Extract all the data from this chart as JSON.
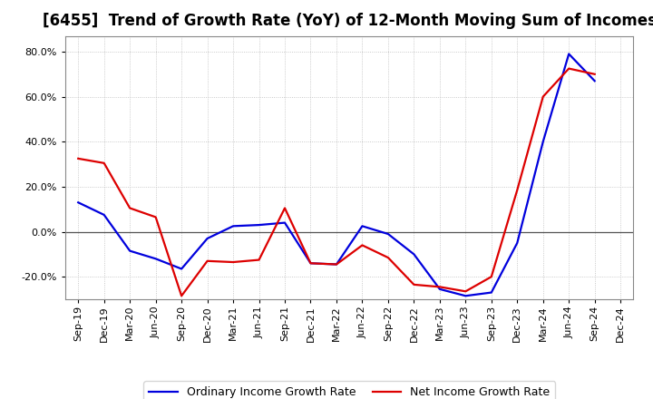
{
  "title": "[6455]  Trend of Growth Rate (YoY) of 12-Month Moving Sum of Incomes",
  "x_labels": [
    "Sep-19",
    "Dec-19",
    "Mar-20",
    "Jun-20",
    "Sep-20",
    "Dec-20",
    "Mar-21",
    "Jun-21",
    "Sep-21",
    "Dec-21",
    "Mar-22",
    "Jun-22",
    "Sep-22",
    "Dec-22",
    "Mar-23",
    "Jun-23",
    "Sep-23",
    "Dec-23",
    "Mar-24",
    "Jun-24",
    "Sep-24",
    "Dec-24"
  ],
  "ordinary_income": [
    0.13,
    0.075,
    -0.085,
    -0.12,
    -0.165,
    -0.03,
    0.025,
    0.03,
    0.04,
    -0.14,
    -0.145,
    0.025,
    -0.01,
    -0.1,
    -0.255,
    -0.285,
    -0.27,
    -0.05,
    0.4,
    0.79,
    0.67,
    null
  ],
  "net_income": [
    0.325,
    0.305,
    0.105,
    0.065,
    -0.285,
    -0.13,
    -0.135,
    -0.125,
    0.105,
    -0.14,
    -0.145,
    -0.06,
    -0.115,
    -0.235,
    -0.245,
    -0.265,
    -0.2,
    0.185,
    0.6,
    0.725,
    0.7,
    null
  ],
  "ordinary_color": "#0000dd",
  "net_color": "#dd0000",
  "background_color": "#ffffff",
  "plot_bg_color": "#ffffff",
  "ylim": [
    -0.3,
    0.87
  ],
  "yticks": [
    -0.2,
    0.0,
    0.2,
    0.4,
    0.6,
    0.8
  ],
  "legend_ordinary": "Ordinary Income Growth Rate",
  "legend_net": "Net Income Growth Rate",
  "title_fontsize": 12,
  "axis_fontsize": 8,
  "legend_fontsize": 9
}
